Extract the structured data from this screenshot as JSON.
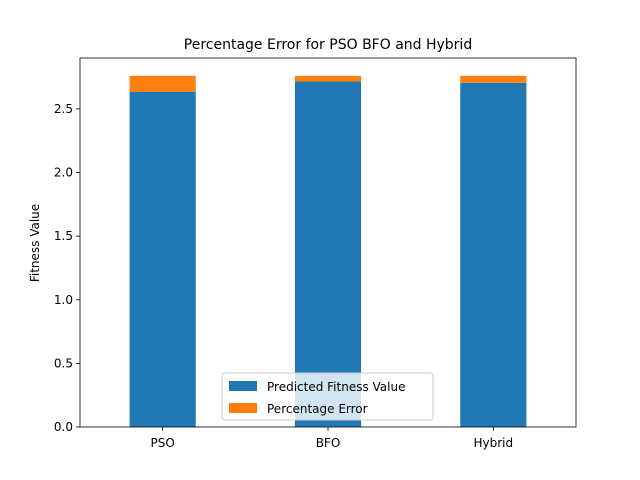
{
  "chart_data": {
    "type": "bar",
    "stacked": true,
    "title": "Percentage Error for PSO BFO and Hybrid",
    "xlabel": "",
    "ylabel": "Fitness Value",
    "categories": [
      "PSO",
      "BFO",
      "Hybrid"
    ],
    "series": [
      {
        "name": "Predicted Fitness Value",
        "values": [
          2.635,
          2.715,
          2.705
        ],
        "color": "#1f77b4"
      },
      {
        "name": "Percentage Error",
        "values": [
          0.125,
          0.045,
          0.055
        ],
        "color": "#ff7f0e"
      }
    ],
    "ylim": [
      0,
      2.9
    ],
    "yticks": [
      "0.0",
      "0.5",
      "1.0",
      "1.5",
      "2.0",
      "2.5"
    ],
    "grid": false,
    "legend_position": "bottom-center"
  }
}
